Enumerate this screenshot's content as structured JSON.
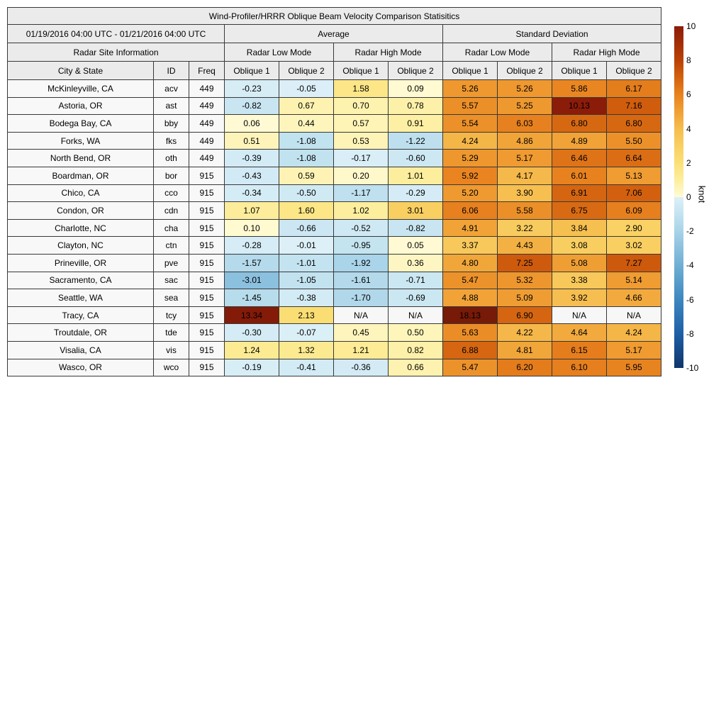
{
  "title": "Wind-Profiler/HRRR Oblique Beam Velocity Comparison Statisitics",
  "header": {
    "date_range": "01/19/2016 04:00 UTC - 01/21/2016 04:00 UTC",
    "group_labels": {
      "average": "Average",
      "std": "Standard Deviation"
    },
    "site_info_label": "Radar Site Information",
    "mode_labels": [
      "Radar Low Mode",
      "Radar High Mode",
      "Radar Low Mode",
      "Radar High Mode"
    ],
    "column_labels": [
      "City & State",
      "ID",
      "Freq",
      "Oblique 1",
      "Oblique 2",
      "Oblique 1",
      "Oblique 2",
      "Oblique 1",
      "Oblique 2",
      "Oblique 1",
      "Oblique 2"
    ]
  },
  "colorbar": {
    "label": "knot",
    "vmin": -10,
    "vmax": 10,
    "ticks": [
      10,
      8,
      6,
      4,
      2,
      0,
      -2,
      -4,
      -6,
      -8,
      -10
    ]
  },
  "colormap": {
    "na_background": "#f7f7f7",
    "positive_stops": [
      [
        0,
        "#fffbd6"
      ],
      [
        1,
        "#fdee9e"
      ],
      [
        2,
        "#fbe076"
      ],
      [
        3,
        "#f9cf62"
      ],
      [
        4,
        "#f6bd4e"
      ],
      [
        5,
        "#f0a035"
      ],
      [
        6,
        "#e8821f"
      ],
      [
        7,
        "#d3620f"
      ],
      [
        8,
        "#bb4105"
      ],
      [
        10,
        "#8b1c09"
      ],
      [
        20,
        "#731a07"
      ]
    ],
    "negative_stops": [
      [
        0,
        "#ddf0f8"
      ],
      [
        1,
        "#c3e3f0"
      ],
      [
        2,
        "#a8d3e8"
      ],
      [
        3,
        "#8bc0de"
      ],
      [
        4,
        "#6fafd4"
      ],
      [
        6,
        "#3d87c0"
      ],
      [
        8,
        "#1d5fa6"
      ],
      [
        10,
        "#10356b"
      ]
    ]
  },
  "chart_data": {
    "type": "table",
    "title": "Wind-Profiler/HRRR Oblique Beam Velocity Comparison Statisitics",
    "value_unit": "knot",
    "value_columns": [
      "Average Radar Low Mode Oblique 1",
      "Average Radar Low Mode Oblique 2",
      "Average Radar High Mode Oblique 1",
      "Average Radar High Mode Oblique 2",
      "Std Dev Radar Low Mode Oblique 1",
      "Std Dev Radar Low Mode Oblique 2",
      "Std Dev Radar High Mode Oblique 1",
      "Std Dev Radar High Mode Oblique 2"
    ],
    "rows": [
      {
        "city": "McKinleyville, CA",
        "id": "acv",
        "freq": "449",
        "values": [
          -0.23,
          -0.05,
          1.58,
          0.09,
          5.26,
          5.26,
          5.86,
          6.17
        ]
      },
      {
        "city": "Astoria, OR",
        "id": "ast",
        "freq": "449",
        "values": [
          -0.82,
          0.67,
          0.7,
          0.78,
          5.57,
          5.25,
          10.13,
          7.16
        ]
      },
      {
        "city": "Bodega Bay, CA",
        "id": "bby",
        "freq": "449",
        "values": [
          0.06,
          0.44,
          0.57,
          0.91,
          5.54,
          6.03,
          6.8,
          6.8
        ]
      },
      {
        "city": "Forks, WA",
        "id": "fks",
        "freq": "449",
        "values": [
          0.51,
          -1.08,
          0.53,
          -1.22,
          4.24,
          4.86,
          4.89,
          5.5
        ]
      },
      {
        "city": "North Bend, OR",
        "id": "oth",
        "freq": "449",
        "values": [
          -0.39,
          -1.08,
          -0.17,
          -0.6,
          5.29,
          5.17,
          6.46,
          6.64
        ]
      },
      {
        "city": "Boardman, OR",
        "id": "bor",
        "freq": "915",
        "values": [
          -0.43,
          0.59,
          0.2,
          1.01,
          5.92,
          4.17,
          6.01,
          5.13
        ]
      },
      {
        "city": "Chico, CA",
        "id": "cco",
        "freq": "915",
        "values": [
          -0.34,
          -0.5,
          -1.17,
          -0.29,
          5.2,
          3.9,
          6.91,
          7.06
        ]
      },
      {
        "city": "Condon, OR",
        "id": "cdn",
        "freq": "915",
        "values": [
          1.07,
          1.6,
          1.02,
          3.01,
          6.06,
          5.58,
          6.75,
          6.09
        ]
      },
      {
        "city": "Charlotte, NC",
        "id": "cha",
        "freq": "915",
        "values": [
          0.1,
          -0.66,
          -0.52,
          -0.82,
          4.91,
          3.22,
          3.84,
          2.9
        ]
      },
      {
        "city": "Clayton, NC",
        "id": "ctn",
        "freq": "915",
        "values": [
          -0.28,
          -0.01,
          -0.95,
          0.05,
          3.37,
          4.43,
          3.08,
          3.02
        ]
      },
      {
        "city": "Prineville, OR",
        "id": "pve",
        "freq": "915",
        "values": [
          -1.57,
          -1.01,
          -1.92,
          0.36,
          4.8,
          7.25,
          5.08,
          7.27
        ]
      },
      {
        "city": "Sacramento, CA",
        "id": "sac",
        "freq": "915",
        "values": [
          -3.01,
          -1.05,
          -1.61,
          -0.71,
          5.47,
          5.32,
          3.38,
          5.14
        ]
      },
      {
        "city": "Seattle, WA",
        "id": "sea",
        "freq": "915",
        "values": [
          -1.45,
          -0.38,
          -1.7,
          -0.69,
          4.88,
          5.09,
          3.92,
          4.66
        ]
      },
      {
        "city": "Tracy, CA",
        "id": "tcy",
        "freq": "915",
        "values": [
          13.34,
          2.13,
          "N/A",
          "N/A",
          18.13,
          6.9,
          "N/A",
          "N/A"
        ]
      },
      {
        "city": "Troutdale, OR",
        "id": "tde",
        "freq": "915",
        "values": [
          -0.3,
          -0.07,
          0.45,
          0.5,
          5.63,
          4.22,
          4.64,
          4.24
        ]
      },
      {
        "city": "Visalia, CA",
        "id": "vis",
        "freq": "915",
        "values": [
          1.24,
          1.32,
          1.21,
          0.82,
          6.88,
          4.81,
          6.15,
          5.17
        ]
      },
      {
        "city": "Wasco, OR",
        "id": "wco",
        "freq": "915",
        "values": [
          -0.19,
          -0.41,
          -0.36,
          0.66,
          5.47,
          6.2,
          6.1,
          5.95
        ]
      }
    ]
  }
}
